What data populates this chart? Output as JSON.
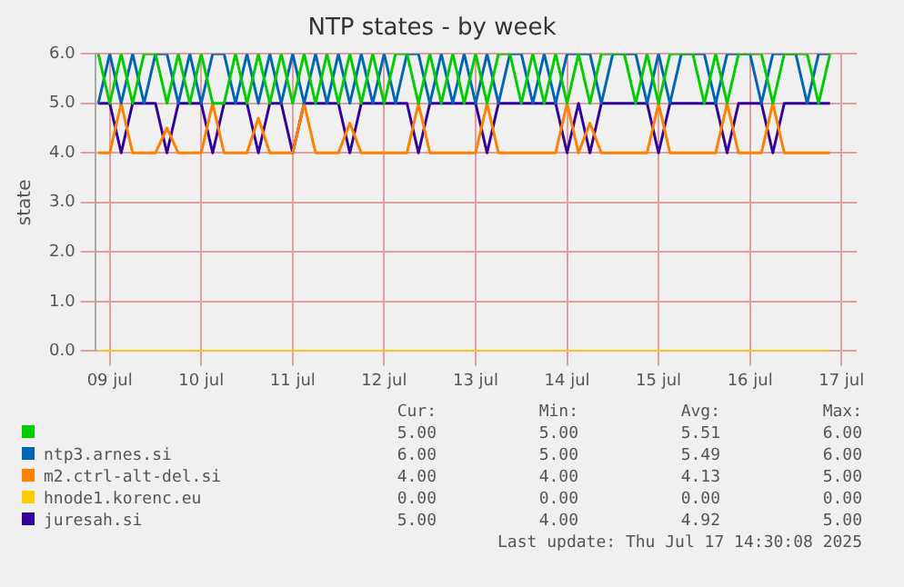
{
  "chart_data": {
    "type": "line",
    "title": "NTP states - by week",
    "ylabel": "state",
    "x": [
      "2025-07-09T09:00",
      "2025-07-09T12:00",
      "2025-07-09T15:00",
      "2025-07-09T18:00",
      "2025-07-09T21:00",
      "2025-07-10T00:00",
      "2025-07-10T03:00",
      "2025-07-10T06:00",
      "2025-07-10T09:00",
      "2025-07-10T12:00",
      "2025-07-10T15:00",
      "2025-07-10T18:00",
      "2025-07-10T21:00",
      "2025-07-11T00:00",
      "2025-07-11T03:00",
      "2025-07-11T06:00",
      "2025-07-11T09:00",
      "2025-07-11T12:00",
      "2025-07-11T15:00",
      "2025-07-11T18:00",
      "2025-07-11T21:00",
      "2025-07-12T00:00",
      "2025-07-12T03:00",
      "2025-07-12T06:00",
      "2025-07-12T09:00",
      "2025-07-12T12:00",
      "2025-07-12T15:00",
      "2025-07-12T18:00",
      "2025-07-12T21:00",
      "2025-07-13T00:00",
      "2025-07-13T03:00",
      "2025-07-13T06:00",
      "2025-07-13T09:00",
      "2025-07-13T12:00",
      "2025-07-13T15:00",
      "2025-07-13T18:00",
      "2025-07-13T21:00",
      "2025-07-14T00:00",
      "2025-07-14T03:00",
      "2025-07-14T06:00",
      "2025-07-14T09:00",
      "2025-07-14T12:00",
      "2025-07-14T15:00",
      "2025-07-14T18:00",
      "2025-07-14T21:00",
      "2025-07-15T00:00",
      "2025-07-15T03:00",
      "2025-07-15T06:00",
      "2025-07-15T09:00",
      "2025-07-15T12:00",
      "2025-07-15T15:00",
      "2025-07-15T18:00",
      "2025-07-15T21:00",
      "2025-07-16T00:00",
      "2025-07-16T03:00",
      "2025-07-16T06:00",
      "2025-07-16T09:00",
      "2025-07-16T12:00",
      "2025-07-16T15:00",
      "2025-07-16T18:00",
      "2025-07-16T21:00",
      "2025-07-17T00:00",
      "2025-07-17T03:00",
      "2025-07-17T06:00",
      "2025-07-17T09:00"
    ],
    "series": [
      {
        "color": "#00cc00",
        "values": [
          6,
          5,
          6,
          5,
          6,
          6,
          5,
          6,
          5,
          6,
          5,
          5,
          6,
          5,
          6,
          5,
          6,
          5,
          6,
          5,
          6,
          5,
          6,
          5,
          6,
          5,
          6,
          6,
          5,
          6,
          5,
          6,
          5,
          6,
          5,
          6,
          6,
          5,
          6,
          5,
          6,
          5,
          6,
          5,
          6,
          6,
          6,
          5,
          6,
          5,
          6,
          6,
          6,
          5,
          6,
          5,
          6,
          6,
          6,
          5,
          6,
          6,
          6,
          5,
          6
        ]
      },
      {
        "name": "ntp3.arnes.si",
        "color": "#0066b3",
        "values": [
          5,
          6,
          5,
          6,
          5,
          6,
          6,
          5,
          6,
          5,
          6,
          6,
          5,
          6,
          5,
          6,
          5,
          6,
          5,
          6,
          5,
          6,
          5,
          6,
          5,
          6,
          5,
          6,
          6,
          5,
          6,
          5,
          6,
          5,
          6,
          5,
          6,
          6,
          5,
          6,
          5,
          6,
          6,
          6,
          5,
          6,
          6,
          6,
          5,
          6,
          5,
          6,
          6,
          6,
          5,
          6,
          6,
          6,
          5,
          6,
          6,
          6,
          5,
          6,
          6
        ]
      },
      {
        "name": "m2.ctrl-alt-del.si",
        "color": "#ff8000",
        "values": [
          4,
          4,
          5,
          4,
          4,
          4,
          4.5,
          4,
          4,
          4,
          5,
          4,
          4,
          4,
          4.7,
          4,
          4,
          4,
          5,
          4,
          4,
          4,
          4.6,
          4,
          4,
          4,
          4,
          4,
          5,
          4,
          4,
          4,
          4,
          4,
          5,
          4,
          4,
          4,
          4,
          4,
          4,
          5,
          4,
          4.6,
          4,
          4,
          4,
          4,
          4,
          5,
          4,
          4,
          4,
          4,
          4,
          5,
          4,
          4,
          4,
          5,
          4,
          4,
          4,
          4,
          4
        ]
      },
      {
        "name": "hnode1.korenc.eu",
        "color": "#ffcc00",
        "values": [
          0,
          0,
          0,
          0,
          0,
          0,
          0,
          0,
          0,
          0,
          0,
          0,
          0,
          0,
          0,
          0,
          0,
          0,
          0,
          0,
          0,
          0,
          0,
          0,
          0,
          0,
          0,
          0,
          0,
          0,
          0,
          0,
          0,
          0,
          0,
          0,
          0,
          0,
          0,
          0,
          0,
          0,
          0,
          0,
          0,
          0,
          0,
          0,
          0,
          0,
          0,
          0,
          0,
          0,
          0,
          0,
          0,
          0,
          0,
          0,
          0,
          0,
          0,
          0,
          0
        ]
      },
      {
        "name": "juresah.si",
        "color": "#330099",
        "values": [
          5,
          5,
          4,
          5,
          5,
          5,
          4,
          5,
          5,
          5,
          4,
          5,
          5,
          5,
          4,
          5,
          5,
          4,
          5,
          5,
          5,
          5,
          4,
          5,
          5,
          5,
          5,
          5,
          4,
          5,
          5,
          5,
          5,
          5,
          4,
          5,
          5,
          5,
          5,
          5,
          5,
          4,
          5,
          4,
          5,
          5,
          5,
          5,
          5,
          4,
          5,
          5,
          5,
          5,
          5,
          4,
          5,
          5,
          5,
          4,
          5,
          5,
          5,
          5,
          5
        ]
      }
    ],
    "xlim": [
      "2025-07-09T08:10",
      "2025-07-17T16:00"
    ],
    "xticks": [
      {
        "value": "2025-07-09T12:00",
        "label": "09 jul"
      },
      {
        "value": "2025-07-10T12:00",
        "label": "10 jul"
      },
      {
        "value": "2025-07-11T12:00",
        "label": "11 jul"
      },
      {
        "value": "2025-07-12T12:00",
        "label": "12 jul"
      },
      {
        "value": "2025-07-13T12:00",
        "label": "13 jul"
      },
      {
        "value": "2025-07-14T12:00",
        "label": "14 jul"
      },
      {
        "value": "2025-07-15T12:00",
        "label": "15 jul"
      },
      {
        "value": "2025-07-16T12:00",
        "label": "16 jul"
      },
      {
        "value": "2025-07-17T12:00",
        "label": "17 jul"
      }
    ],
    "ylim": [
      0,
      6
    ],
    "yticks": [
      {
        "value": 0,
        "label": "0.0"
      },
      {
        "value": 1,
        "label": "1.0"
      },
      {
        "value": 2,
        "label": "2.0"
      },
      {
        "value": 3,
        "label": "3.0"
      },
      {
        "value": 4,
        "label": "4.0"
      },
      {
        "value": 5,
        "label": "5.0"
      },
      {
        "value": 6,
        "label": "6.0"
      }
    ],
    "grid": true,
    "legend": "bottom",
    "marker": "none",
    "annotations": [
      "Cur:",
      "Min:",
      "Avg:",
      "Max:",
      "5.00",
      "5.00",
      "5.51",
      "6.00",
      "6.00",
      "5.00",
      "5.49",
      "6.00",
      "4.00",
      "4.00",
      "4.13",
      "5.00",
      "0.00",
      "0.00",
      "0.00",
      "0.00",
      "5.00",
      "4.00",
      "4.92",
      "5.00",
      "Last update: Thu Jul 17 14:30:08 2025"
    ]
  }
}
